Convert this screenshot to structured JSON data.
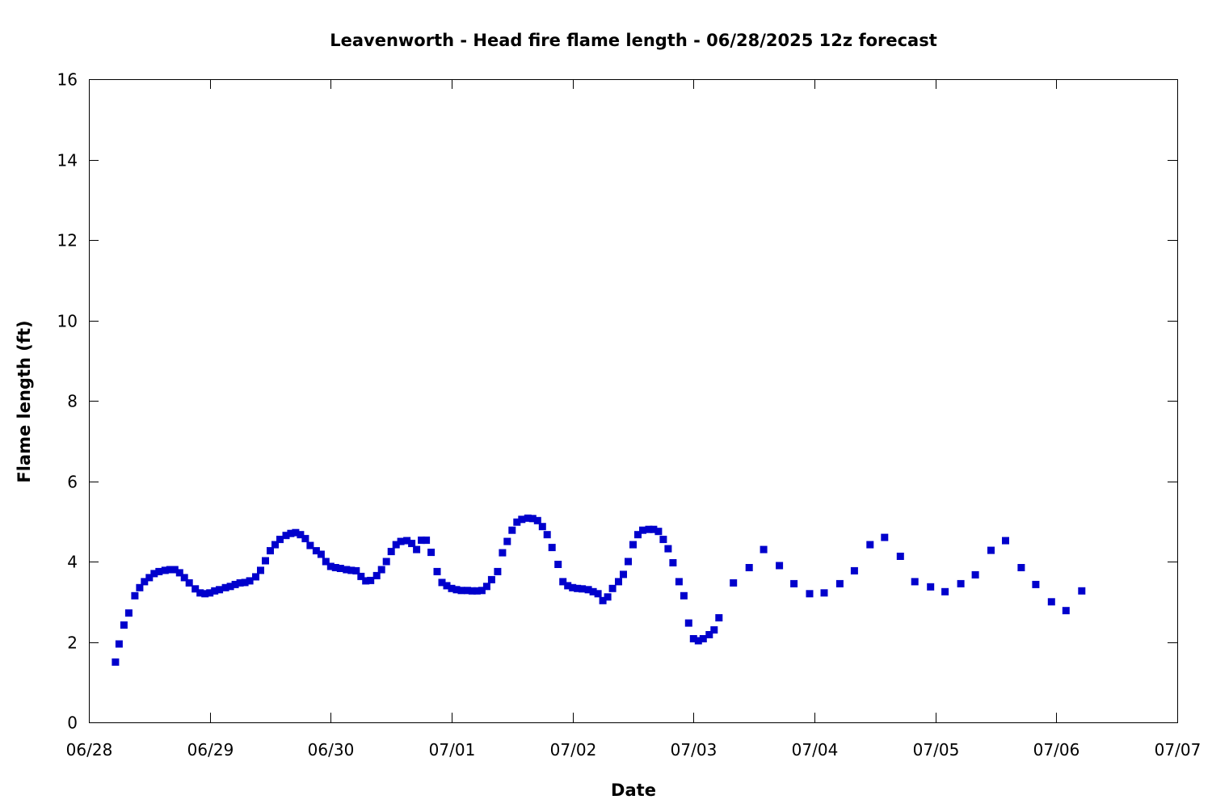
{
  "chart_data": {
    "type": "scatter",
    "title": "Leavenworth - Head fire flame length - 06/28/2025 12z forecast",
    "xlabel": "Date",
    "ylabel": "Flame length (ft)",
    "x_unit": "day of 06/28/2025 12z forecast timeline (0 = 06/28 00:00)",
    "xlim": [
      0,
      9
    ],
    "ylim": [
      0,
      16
    ],
    "xticks": [
      {
        "value": 0,
        "label": "06/28"
      },
      {
        "value": 1,
        "label": "06/29"
      },
      {
        "value": 2,
        "label": "06/30"
      },
      {
        "value": 3,
        "label": "07/01"
      },
      {
        "value": 4,
        "label": "07/02"
      },
      {
        "value": 5,
        "label": "07/03"
      },
      {
        "value": 6,
        "label": "07/04"
      },
      {
        "value": 7,
        "label": "07/05"
      },
      {
        "value": 8,
        "label": "07/06"
      },
      {
        "value": 9,
        "label": "07/07"
      }
    ],
    "yticks": [
      0,
      2,
      4,
      6,
      8,
      10,
      12,
      14,
      16
    ],
    "grid": false,
    "marker_color": "#0000cc",
    "series": [
      {
        "points": [
          [
            0.22,
            1.5
          ],
          [
            0.25,
            1.95
          ],
          [
            0.29,
            2.42
          ],
          [
            0.33,
            2.72
          ],
          [
            0.38,
            3.15
          ],
          [
            0.42,
            3.35
          ],
          [
            0.46,
            3.5
          ],
          [
            0.5,
            3.6
          ],
          [
            0.54,
            3.7
          ],
          [
            0.58,
            3.75
          ],
          [
            0.63,
            3.78
          ],
          [
            0.67,
            3.8
          ],
          [
            0.71,
            3.8
          ],
          [
            0.75,
            3.72
          ],
          [
            0.79,
            3.6
          ],
          [
            0.83,
            3.47
          ],
          [
            0.88,
            3.32
          ],
          [
            0.92,
            3.22
          ],
          [
            0.96,
            3.2
          ],
          [
            1.0,
            3.22
          ],
          [
            1.04,
            3.27
          ],
          [
            1.08,
            3.3
          ],
          [
            1.13,
            3.35
          ],
          [
            1.17,
            3.38
          ],
          [
            1.21,
            3.43
          ],
          [
            1.25,
            3.47
          ],
          [
            1.29,
            3.48
          ],
          [
            1.33,
            3.52
          ],
          [
            1.38,
            3.62
          ],
          [
            1.42,
            3.78
          ],
          [
            1.46,
            4.02
          ],
          [
            1.5,
            4.27
          ],
          [
            1.54,
            4.42
          ],
          [
            1.58,
            4.55
          ],
          [
            1.63,
            4.65
          ],
          [
            1.67,
            4.7
          ],
          [
            1.71,
            4.72
          ],
          [
            1.75,
            4.67
          ],
          [
            1.79,
            4.57
          ],
          [
            1.83,
            4.4
          ],
          [
            1.88,
            4.27
          ],
          [
            1.92,
            4.18
          ],
          [
            1.96,
            4.0
          ],
          [
            2.0,
            3.88
          ],
          [
            2.04,
            3.85
          ],
          [
            2.08,
            3.83
          ],
          [
            2.13,
            3.8
          ],
          [
            2.17,
            3.78
          ],
          [
            2.21,
            3.77
          ],
          [
            2.25,
            3.63
          ],
          [
            2.29,
            3.52
          ],
          [
            2.33,
            3.53
          ],
          [
            2.38,
            3.65
          ],
          [
            2.42,
            3.8
          ],
          [
            2.46,
            4.0
          ],
          [
            2.5,
            4.25
          ],
          [
            2.54,
            4.42
          ],
          [
            2.58,
            4.5
          ],
          [
            2.63,
            4.52
          ],
          [
            2.67,
            4.45
          ],
          [
            2.71,
            4.3
          ],
          [
            2.75,
            4.53
          ],
          [
            2.79,
            4.53
          ],
          [
            2.83,
            4.23
          ],
          [
            2.88,
            3.75
          ],
          [
            2.92,
            3.48
          ],
          [
            2.96,
            3.4
          ],
          [
            3.0,
            3.33
          ],
          [
            3.04,
            3.3
          ],
          [
            3.08,
            3.28
          ],
          [
            3.13,
            3.28
          ],
          [
            3.17,
            3.27
          ],
          [
            3.21,
            3.27
          ],
          [
            3.25,
            3.28
          ],
          [
            3.29,
            3.38
          ],
          [
            3.33,
            3.55
          ],
          [
            3.38,
            3.75
          ],
          [
            3.42,
            4.22
          ],
          [
            3.46,
            4.5
          ],
          [
            3.5,
            4.78
          ],
          [
            3.54,
            4.98
          ],
          [
            3.58,
            5.05
          ],
          [
            3.63,
            5.08
          ],
          [
            3.67,
            5.07
          ],
          [
            3.71,
            5.02
          ],
          [
            3.75,
            4.87
          ],
          [
            3.79,
            4.67
          ],
          [
            3.83,
            4.35
          ],
          [
            3.88,
            3.93
          ],
          [
            3.92,
            3.5
          ],
          [
            3.96,
            3.4
          ],
          [
            4.0,
            3.35
          ],
          [
            4.04,
            3.33
          ],
          [
            4.08,
            3.32
          ],
          [
            4.13,
            3.3
          ],
          [
            4.17,
            3.25
          ],
          [
            4.21,
            3.2
          ],
          [
            4.25,
            3.03
          ],
          [
            4.29,
            3.12
          ],
          [
            4.33,
            3.33
          ],
          [
            4.38,
            3.5
          ],
          [
            4.42,
            3.68
          ],
          [
            4.46,
            4.0
          ],
          [
            4.5,
            4.42
          ],
          [
            4.54,
            4.67
          ],
          [
            4.58,
            4.78
          ],
          [
            4.63,
            4.8
          ],
          [
            4.67,
            4.8
          ],
          [
            4.71,
            4.75
          ],
          [
            4.75,
            4.55
          ],
          [
            4.79,
            4.32
          ],
          [
            4.83,
            3.97
          ],
          [
            4.88,
            3.5
          ],
          [
            4.92,
            3.15
          ],
          [
            4.96,
            2.47
          ],
          [
            5.0,
            2.08
          ],
          [
            5.04,
            2.03
          ],
          [
            5.08,
            2.08
          ],
          [
            5.13,
            2.18
          ],
          [
            5.17,
            2.3
          ],
          [
            5.21,
            2.6
          ],
          [
            5.33,
            3.47
          ],
          [
            5.46,
            3.85
          ],
          [
            5.58,
            4.3
          ],
          [
            5.71,
            3.9
          ],
          [
            5.83,
            3.45
          ],
          [
            5.96,
            3.2
          ],
          [
            6.08,
            3.22
          ],
          [
            6.21,
            3.45
          ],
          [
            6.33,
            3.77
          ],
          [
            6.46,
            4.42
          ],
          [
            6.58,
            4.6
          ],
          [
            6.71,
            4.13
          ],
          [
            6.83,
            3.5
          ],
          [
            6.96,
            3.37
          ],
          [
            7.08,
            3.25
          ],
          [
            7.21,
            3.45
          ],
          [
            7.33,
            3.67
          ],
          [
            7.46,
            4.28
          ],
          [
            7.58,
            4.52
          ],
          [
            7.71,
            3.85
          ],
          [
            7.83,
            3.43
          ],
          [
            7.96,
            3.0
          ],
          [
            8.08,
            2.78
          ],
          [
            8.21,
            3.27
          ]
        ]
      }
    ]
  }
}
